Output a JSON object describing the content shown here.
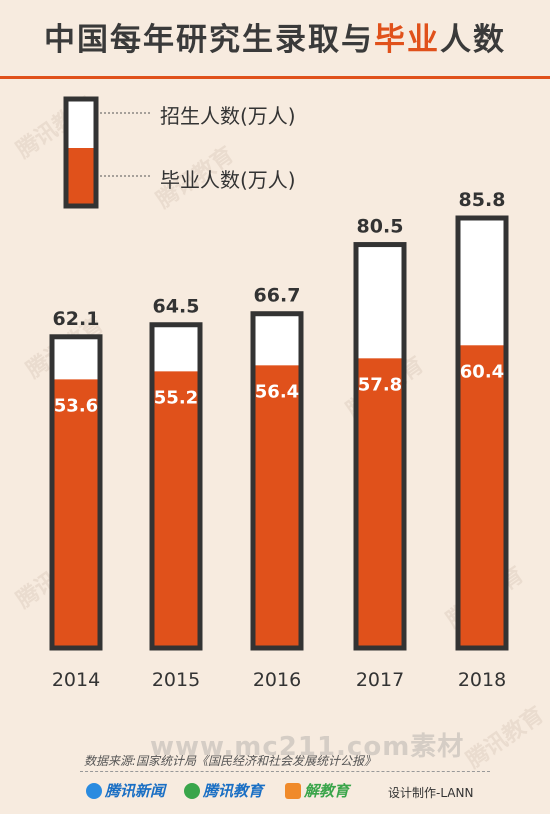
{
  "title": {
    "part1": "中国每年研究生录取与",
    "part2": "毕业",
    "part3": "人数"
  },
  "legend": {
    "enrolled": "招生人数(万人)",
    "graduated": "毕业人数(万人)"
  },
  "colors": {
    "accent": "#e0511b",
    "outline": "#333333",
    "background": "#f7ebdf"
  },
  "chart_data": {
    "type": "bar",
    "title": "中国每年研究生录取与毕业人数",
    "categories": [
      "2014",
      "2015",
      "2016",
      "2017",
      "2018"
    ],
    "series": [
      {
        "name": "招生人数(万人)",
        "values": [
          62.1,
          64.5,
          66.7,
          80.5,
          85.8
        ]
      },
      {
        "name": "毕业人数(万人)",
        "values": [
          53.6,
          55.2,
          56.4,
          57.8,
          60.4
        ]
      }
    ],
    "ylim": [
      0,
      85.8
    ],
    "grid": false,
    "legend_position": "top-left"
  },
  "footer": {
    "source": "数据来源:国家统计局《国民经济和社会发展统计公报》",
    "logo1": "腾讯新闻",
    "logo2": "腾讯教育",
    "logo3": "解教育",
    "credit": "设计制作-LANN",
    "sitemark": "www.mc211.com素材"
  },
  "watermark": "腾讯教育"
}
